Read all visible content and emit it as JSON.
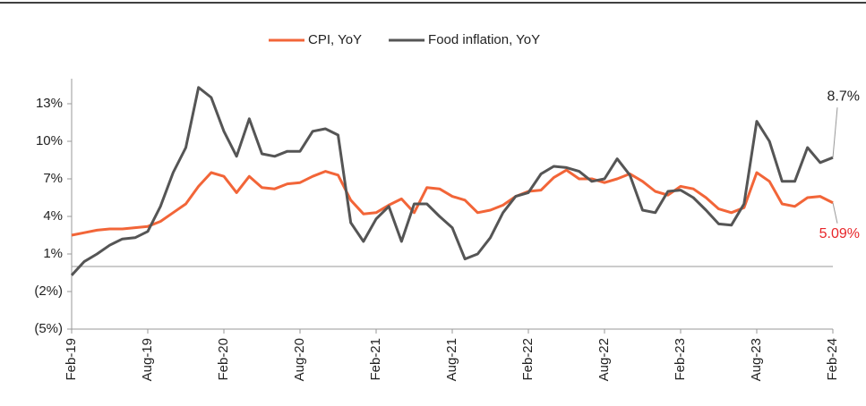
{
  "chart_data": {
    "type": "line",
    "categories": [
      "Feb-19",
      null,
      null,
      null,
      null,
      null,
      "Aug-19",
      null,
      null,
      null,
      null,
      null,
      "Feb-20",
      null,
      null,
      null,
      null,
      null,
      "Aug-20",
      null,
      null,
      null,
      null,
      null,
      "Feb-21",
      null,
      null,
      null,
      null,
      null,
      "Aug-21",
      null,
      null,
      null,
      null,
      null,
      "Feb-22",
      null,
      null,
      null,
      null,
      null,
      "Aug-22",
      null,
      null,
      null,
      null,
      null,
      "Feb-23",
      null,
      null,
      null,
      null,
      null,
      "Aug-23",
      null,
      null,
      null,
      null,
      null,
      "Feb-24"
    ],
    "series": [
      {
        "name": "CPI, YoY",
        "color": "#f26538",
        "label_color": "#e8262a",
        "values": [
          2.5,
          2.7,
          2.9,
          3.0,
          3.0,
          3.1,
          3.2,
          3.6,
          4.3,
          5.0,
          6.4,
          7.5,
          7.2,
          5.9,
          7.2,
          6.3,
          6.2,
          6.6,
          6.7,
          7.2,
          7.6,
          7.3,
          5.3,
          4.2,
          4.3,
          4.9,
          5.4,
          4.3,
          6.3,
          6.2,
          5.6,
          5.3,
          4.3,
          4.5,
          4.9,
          5.6,
          6.0,
          6.1,
          7.1,
          7.7,
          7.0,
          7.0,
          6.7,
          7.0,
          7.4,
          6.8,
          6.0,
          5.7,
          6.4,
          6.2,
          5.5,
          4.6,
          4.3,
          4.7,
          7.5,
          6.8,
          5.0,
          4.8,
          5.5,
          5.6,
          5.09
        ],
        "value_labels": [
          null,
          null,
          null,
          null,
          null,
          null,
          null,
          null,
          null,
          null,
          null,
          null,
          null,
          null,
          null,
          null,
          null,
          null,
          null,
          null,
          null,
          null,
          null,
          null,
          null,
          null,
          null,
          null,
          null,
          null,
          null,
          null,
          null,
          null,
          null,
          null,
          null,
          null,
          null,
          null,
          null,
          null,
          null,
          null,
          null,
          null,
          null,
          null,
          null,
          null,
          null,
          null,
          null,
          null,
          null,
          null,
          null,
          null,
          null,
          null,
          "5.09%"
        ]
      },
      {
        "name": "Food inflation, YoY",
        "color": "#555555",
        "label_color": "#222222",
        "values": [
          -0.7,
          0.4,
          1.0,
          1.7,
          2.2,
          2.3,
          2.8,
          4.8,
          7.5,
          9.5,
          14.3,
          13.5,
          10.8,
          8.8,
          11.8,
          9.0,
          8.8,
          9.2,
          9.2,
          10.8,
          11.0,
          10.5,
          3.5,
          2.0,
          3.8,
          4.8,
          2.0,
          5.0,
          5.0,
          4.0,
          3.1,
          0.6,
          1.0,
          2.3,
          4.3,
          5.6,
          5.9,
          7.4,
          8.0,
          7.9,
          7.6,
          6.8,
          7.0,
          8.6,
          7.3,
          4.5,
          4.3,
          6.0,
          6.1,
          5.5,
          4.5,
          3.4,
          3.3,
          5.0,
          11.6,
          10.0,
          6.8,
          6.8,
          9.5,
          8.3,
          8.7
        ],
        "value_labels": [
          null,
          null,
          null,
          null,
          null,
          null,
          null,
          null,
          null,
          null,
          null,
          null,
          null,
          null,
          null,
          null,
          null,
          null,
          null,
          null,
          null,
          null,
          null,
          null,
          null,
          null,
          null,
          null,
          null,
          null,
          null,
          null,
          null,
          null,
          null,
          null,
          null,
          null,
          null,
          null,
          null,
          null,
          null,
          null,
          null,
          null,
          null,
          null,
          null,
          null,
          null,
          null,
          null,
          null,
          null,
          null,
          null,
          null,
          null,
          null,
          "8.7%"
        ]
      }
    ],
    "ylim": [
      -5,
      15
    ],
    "yticks": [
      {
        "value": -5,
        "label": "(5%)"
      },
      {
        "value": -2,
        "label": "(2%)"
      },
      {
        "value": 1,
        "label": "1%"
      },
      {
        "value": 4,
        "label": "4%"
      },
      {
        "value": 7,
        "label": "7%"
      },
      {
        "value": 10,
        "label": "10%"
      },
      {
        "value": 13,
        "label": "13%"
      }
    ],
    "legend": "top"
  }
}
